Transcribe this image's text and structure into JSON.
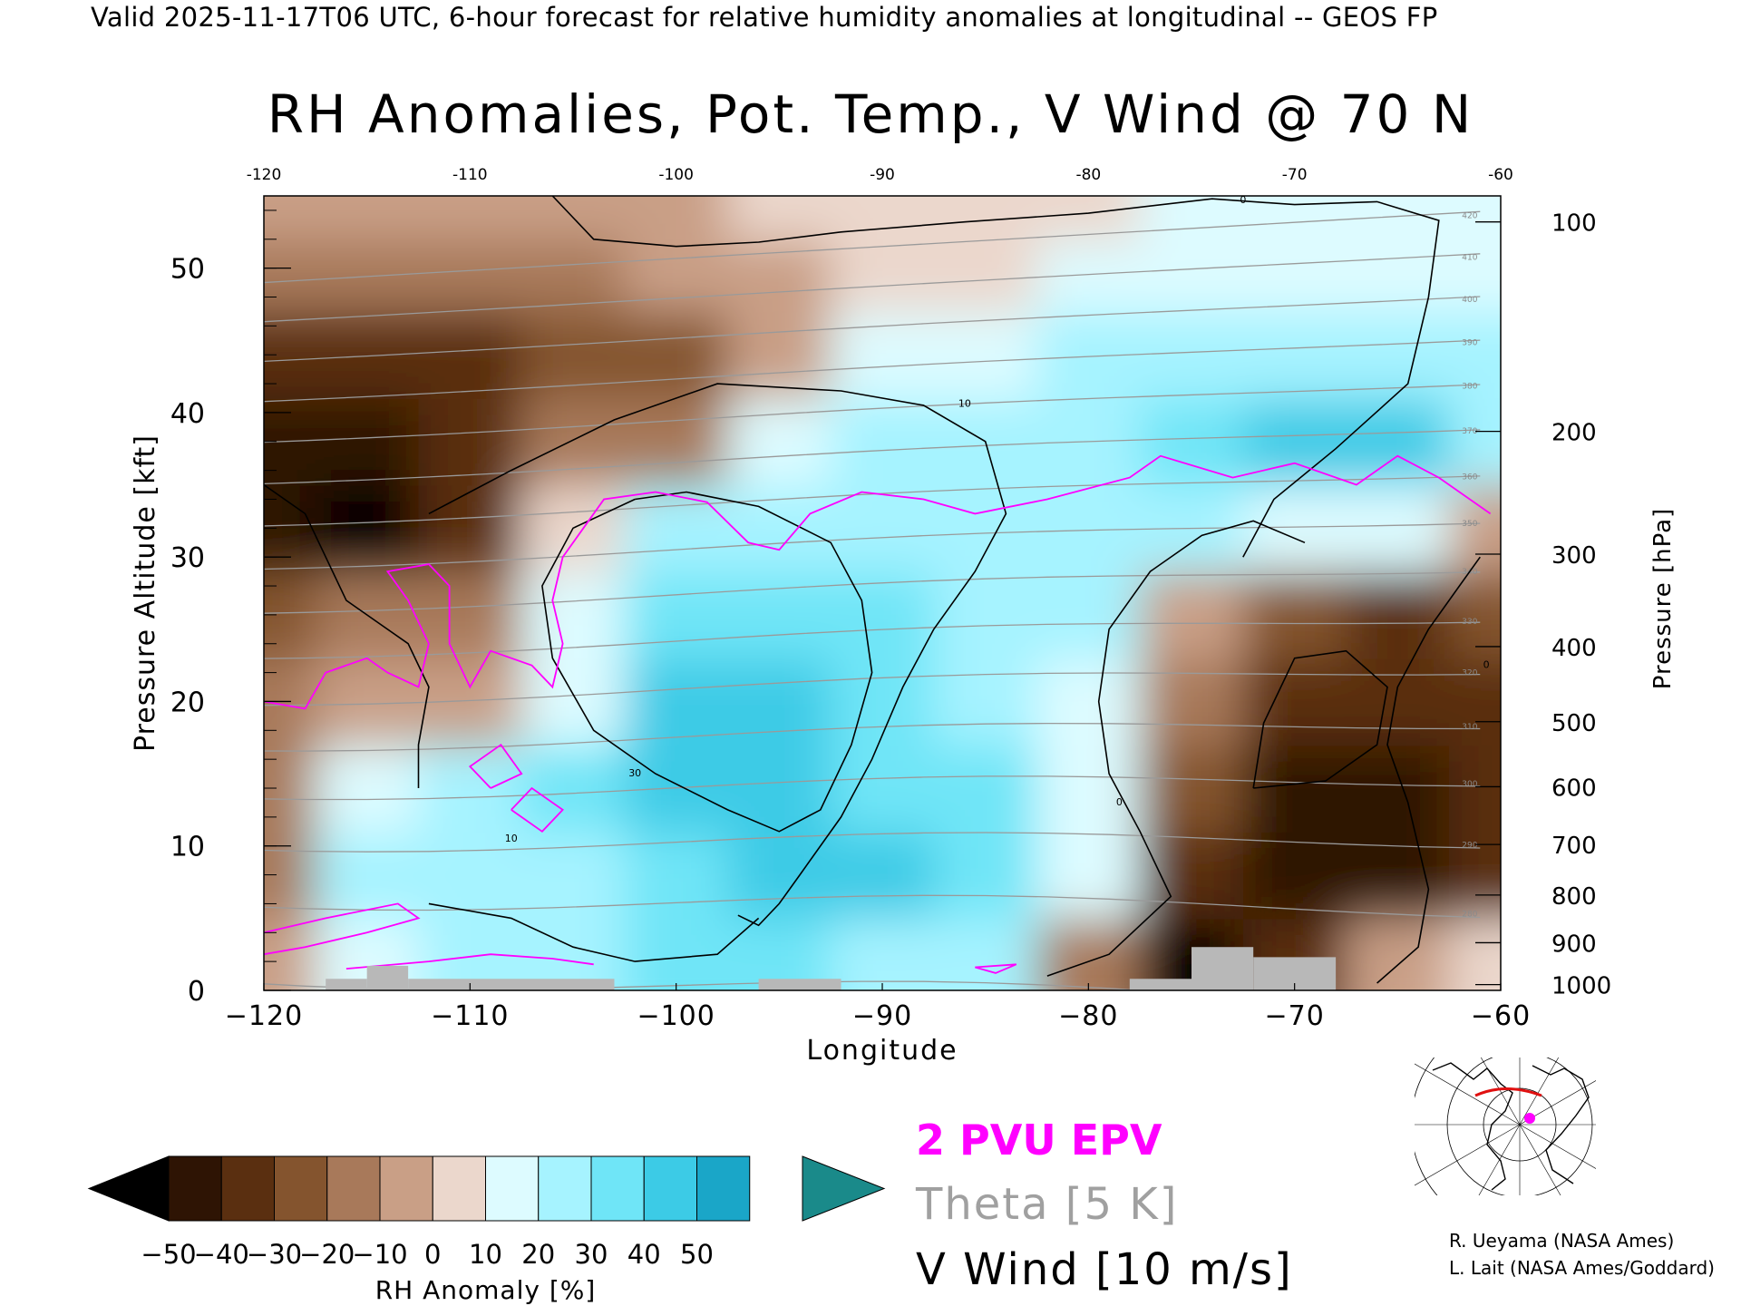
{
  "header": {
    "valid_line": "Valid 2025-11-17T06 UTC, 6-hour forecast for relative humidity anomalies at longitudinal -- GEOS FP",
    "title": "RH Anomalies, Pot. Temp., V Wind @ 70 N"
  },
  "chart_data": {
    "type": "heatmap",
    "title": "RH Anomalies, Pot. Temp., V Wind @ 70 N",
    "xlabel": "Longitude",
    "ylabel": "Pressure Altitude [kft]",
    "y2label": "Pressure [hPa]",
    "xlim": [
      -120,
      -60
    ],
    "ylim": [
      0,
      55
    ],
    "x_ticks": [
      -120,
      -110,
      -100,
      -90,
      -80,
      -70,
      -60
    ],
    "y_ticks": [
      0,
      10,
      20,
      30,
      40,
      50
    ],
    "pressure_ticks": [
      {
        "label": "100",
        "kft": 53.2
      },
      {
        "label": "200",
        "kft": 38.7
      },
      {
        "label": "300",
        "kft": 30.2
      },
      {
        "label": "400",
        "kft": 23.8
      },
      {
        "label": "500",
        "kft": 18.6
      },
      {
        "label": "600",
        "kft": 14.1
      },
      {
        "label": "700",
        "kft": 10.1
      },
      {
        "label": "800",
        "kft": 6.6
      },
      {
        "label": "900",
        "kft": 3.3
      },
      {
        "label": "1000",
        "kft": 0.4
      }
    ],
    "colorbar": {
      "label": "RH Anomaly [%]",
      "ticks": [
        "-50",
        "-40",
        "-30",
        "-20",
        "-10",
        "0",
        "10",
        "20",
        "30",
        "40",
        "50"
      ],
      "colors": [
        "#2e1404",
        "#5a2f10",
        "#84542e",
        "#a8795a",
        "#c99f86",
        "#ebd7cc",
        "#ddfbff",
        "#a6f3ff",
        "#6fe5f7",
        "#3ccbe6",
        "#1aa6c8"
      ],
      "under_color": "#000000",
      "over_color": "#1a8a8a"
    },
    "theta_interval_K": 5,
    "theta_labels": [
      "270",
      "280",
      "290",
      "300",
      "310",
      "320",
      "330",
      "340",
      "350",
      "360",
      "370",
      "380",
      "390",
      "400",
      "410",
      "420"
    ],
    "vwind_contour_labels": [
      "0",
      "10",
      "30"
    ],
    "legend": [
      "2 PVU EPV",
      "Theta [5 K]",
      "V Wind [10 m/s]"
    ],
    "legend_colors": [
      "#ff00ff",
      "#a0a0a0",
      "#000000"
    ],
    "rh_anomaly_grid": {
      "lon": [
        -120,
        -115,
        -110,
        -105,
        -100,
        -95,
        -90,
        -85,
        -80,
        -75,
        -70,
        -65,
        -60
      ],
      "kft": [
        2,
        8,
        14,
        20,
        26,
        32,
        38,
        44,
        50,
        54
      ],
      "values": [
        [
          -10,
          15,
          20,
          25,
          30,
          30,
          25,
          25,
          -20,
          -60,
          -40,
          -10,
          5
        ],
        [
          -15,
          20,
          25,
          25,
          35,
          40,
          40,
          30,
          10,
          -40,
          -45,
          -45,
          -40
        ],
        [
          -20,
          10,
          20,
          30,
          40,
          40,
          35,
          30,
          15,
          -30,
          -45,
          -45,
          -40
        ],
        [
          -15,
          -10,
          -5,
          15,
          40,
          45,
          35,
          25,
          15,
          -20,
          -40,
          -40,
          -35
        ],
        [
          -25,
          -20,
          -15,
          10,
          35,
          35,
          30,
          25,
          20,
          -5,
          -25,
          -35,
          -30
        ],
        [
          -50,
          -55,
          -40,
          5,
          20,
          25,
          25,
          25,
          25,
          20,
          15,
          10,
          -10
        ],
        [
          -45,
          -45,
          -40,
          -20,
          -15,
          10,
          20,
          20,
          25,
          30,
          40,
          40,
          20
        ],
        [
          -35,
          -40,
          -35,
          -30,
          -25,
          -10,
          10,
          15,
          20,
          20,
          25,
          25,
          20
        ],
        [
          -20,
          -20,
          -15,
          -15,
          -10,
          -5,
          0,
          5,
          10,
          15,
          15,
          15,
          15
        ],
        [
          -10,
          -10,
          -5,
          -5,
          -5,
          0,
          0,
          5,
          5,
          10,
          10,
          10,
          10
        ]
      ]
    }
  },
  "map_inset": {
    "icon": "polar-map-icon",
    "section_color": "#e01010",
    "marker_color": "#ff00ff"
  },
  "credits": [
    "R. Ueyama (NASA Ames)",
    "L. Lait (NASA Ames/Goddard)"
  ]
}
